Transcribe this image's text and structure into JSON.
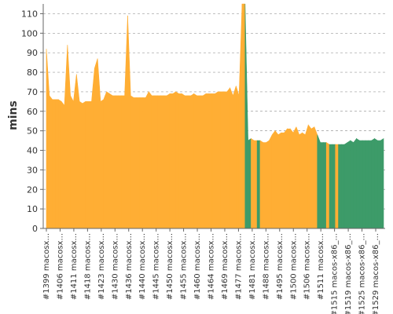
{
  "chart_data": {
    "type": "area",
    "ylabel": "mins",
    "ylim": [
      0,
      115
    ],
    "yticks": [
      0,
      10,
      20,
      30,
      40,
      50,
      60,
      70,
      80,
      90,
      100,
      110
    ],
    "grid": "horizontal dashed",
    "status_colors": {
      "failed": "#FFAE34",
      "passed": "#3D9B69"
    },
    "x_tick_labels": [
      "#1399 macosx...",
      "#1406 macosx...",
      "#1411 macosx...",
      "#1418 macosx...",
      "#1423 macosx...",
      "#1430 macosx...",
      "#1436 macosx...",
      "#1440 macosx...",
      "#1445 macosx...",
      "#1450 macosx...",
      "#1455 macosx...",
      "#1460 macosx...",
      "#1464 macosx...",
      "#1469 macosx...",
      "#1477 macosx...",
      "#1481 macosx...",
      "#1488 macosx...",
      "#1495 macosx...",
      "#1500 macosx...",
      "#1506 macosx...",
      "#1511 macosx...",
      "#1515 macos-x86_...",
      "#1519 macos-x86_...",
      "#1525 macos-x86_...",
      "#1529 macos-x86_..."
    ],
    "points": [
      {
        "build": 1399,
        "mins": 92,
        "status": "failed"
      },
      {
        "build": 1400,
        "mins": 68,
        "status": "failed"
      },
      {
        "build": 1401,
        "mins": 66,
        "status": "failed"
      },
      {
        "build": 1402,
        "mins": 66,
        "status": "failed"
      },
      {
        "build": 1403,
        "mins": 66,
        "status": "failed"
      },
      {
        "build": 1404,
        "mins": 65,
        "status": "failed"
      },
      {
        "build": 1405,
        "mins": 63,
        "status": "failed"
      },
      {
        "build": 1406,
        "mins": 94,
        "status": "failed"
      },
      {
        "build": 1407,
        "mins": 68,
        "status": "failed"
      },
      {
        "build": 1408,
        "mins": 65,
        "status": "failed"
      },
      {
        "build": 1409,
        "mins": 79,
        "status": "failed"
      },
      {
        "build": 1410,
        "mins": 65,
        "status": "failed"
      },
      {
        "build": 1411,
        "mins": 64,
        "status": "failed"
      },
      {
        "build": 1412,
        "mins": 65,
        "status": "failed"
      },
      {
        "build": 1413,
        "mins": 65,
        "status": "failed"
      },
      {
        "build": 1414,
        "mins": 65,
        "status": "failed"
      },
      {
        "build": 1415,
        "mins": 82,
        "status": "failed"
      },
      {
        "build": 1416,
        "mins": 87,
        "status": "failed"
      },
      {
        "build": 1417,
        "mins": 65,
        "status": "failed"
      },
      {
        "build": 1418,
        "mins": 66,
        "status": "failed"
      },
      {
        "build": 1419,
        "mins": 70,
        "status": "failed"
      },
      {
        "build": 1420,
        "mins": 69,
        "status": "failed"
      },
      {
        "build": 1421,
        "mins": 68,
        "status": "failed"
      },
      {
        "build": 1422,
        "mins": 68,
        "status": "failed"
      },
      {
        "build": 1423,
        "mins": 68,
        "status": "failed"
      },
      {
        "build": 1424,
        "mins": 68,
        "status": "failed"
      },
      {
        "build": 1425,
        "mins": 68,
        "status": "failed"
      },
      {
        "build": 1426,
        "mins": 109,
        "status": "failed"
      },
      {
        "build": 1427,
        "mins": 68,
        "status": "failed"
      },
      {
        "build": 1428,
        "mins": 67,
        "status": "failed"
      },
      {
        "build": 1429,
        "mins": 67,
        "status": "failed"
      },
      {
        "build": 1430,
        "mins": 67,
        "status": "failed"
      },
      {
        "build": 1431,
        "mins": 67,
        "status": "failed"
      },
      {
        "build": 1432,
        "mins": 67,
        "status": "failed"
      },
      {
        "build": 1433,
        "mins": 70,
        "status": "failed"
      },
      {
        "build": 1434,
        "mins": 68,
        "status": "failed"
      },
      {
        "build": 1435,
        "mins": 68,
        "status": "failed"
      },
      {
        "build": 1436,
        "mins": 68,
        "status": "failed"
      },
      {
        "build": 1437,
        "mins": 68,
        "status": "failed"
      },
      {
        "build": 1438,
        "mins": 68,
        "status": "failed"
      },
      {
        "build": 1439,
        "mins": 68,
        "status": "failed"
      },
      {
        "build": 1440,
        "mins": 69,
        "status": "failed"
      },
      {
        "build": 1441,
        "mins": 69,
        "status": "failed"
      },
      {
        "build": 1442,
        "mins": 70,
        "status": "failed"
      },
      {
        "build": 1443,
        "mins": 69,
        "status": "failed"
      },
      {
        "build": 1444,
        "mins": 69,
        "status": "failed"
      },
      {
        "build": 1445,
        "mins": 68,
        "status": "failed"
      },
      {
        "build": 1446,
        "mins": 68,
        "status": "failed"
      },
      {
        "build": 1447,
        "mins": 68,
        "status": "failed"
      },
      {
        "build": 1448,
        "mins": 69,
        "status": "failed"
      },
      {
        "build": 1449,
        "mins": 68,
        "status": "failed"
      },
      {
        "build": 1450,
        "mins": 68,
        "status": "failed"
      },
      {
        "build": 1451,
        "mins": 68,
        "status": "failed"
      },
      {
        "build": 1452,
        "mins": 69,
        "status": "failed"
      },
      {
        "build": 1453,
        "mins": 69,
        "status": "failed"
      },
      {
        "build": 1454,
        "mins": 69,
        "status": "failed"
      },
      {
        "build": 1455,
        "mins": 69,
        "status": "failed"
      },
      {
        "build": 1456,
        "mins": 70,
        "status": "failed"
      },
      {
        "build": 1457,
        "mins": 70,
        "status": "failed"
      },
      {
        "build": 1458,
        "mins": 70,
        "status": "failed"
      },
      {
        "build": 1459,
        "mins": 70,
        "status": "failed"
      },
      {
        "build": 1460,
        "mins": 72,
        "status": "failed"
      },
      {
        "build": 1461,
        "mins": 68,
        "status": "failed"
      },
      {
        "build": 1462,
        "mins": 73,
        "status": "failed"
      },
      {
        "build": 1463,
        "mins": 68,
        "status": "failed"
      },
      {
        "build": 1464,
        "mins": 115,
        "status": "failed"
      },
      {
        "build": 1465,
        "mins": 115,
        "status": "failed"
      },
      {
        "build": 1466,
        "mins": 45,
        "status": "passed"
      },
      {
        "build": 1467,
        "mins": 46,
        "status": "passed"
      },
      {
        "build": 1468,
        "mins": 45,
        "status": "failed"
      },
      {
        "build": 1469,
        "mins": 45,
        "status": "failed"
      },
      {
        "build": 1470,
        "mins": 45,
        "status": "passed"
      },
      {
        "build": 1471,
        "mins": 44,
        "status": "failed"
      },
      {
        "build": 1472,
        "mins": 44,
        "status": "failed"
      },
      {
        "build": 1473,
        "mins": 45,
        "status": "failed"
      },
      {
        "build": 1474,
        "mins": 48,
        "status": "failed"
      },
      {
        "build": 1475,
        "mins": 50,
        "status": "failed"
      },
      {
        "build": 1476,
        "mins": 48,
        "status": "failed"
      },
      {
        "build": 1477,
        "mins": 49,
        "status": "failed"
      },
      {
        "build": 1478,
        "mins": 49,
        "status": "failed"
      },
      {
        "build": 1479,
        "mins": 51,
        "status": "failed"
      },
      {
        "build": 1480,
        "mins": 51,
        "status": "failed"
      },
      {
        "build": 1481,
        "mins": 49,
        "status": "failed"
      },
      {
        "build": 1482,
        "mins": 52,
        "status": "failed"
      },
      {
        "build": 1483,
        "mins": 48,
        "status": "failed"
      },
      {
        "build": 1484,
        "mins": 49,
        "status": "failed"
      },
      {
        "build": 1485,
        "mins": 48,
        "status": "failed"
      },
      {
        "build": 1486,
        "mins": 53,
        "status": "failed"
      },
      {
        "build": 1487,
        "mins": 51,
        "status": "failed"
      },
      {
        "build": 1488,
        "mins": 52,
        "status": "failed"
      },
      {
        "build": 1489,
        "mins": 48,
        "status": "failed"
      },
      {
        "build": 1490,
        "mins": 44,
        "status": "passed"
      },
      {
        "build": 1491,
        "mins": 44,
        "status": "passed"
      },
      {
        "build": 1492,
        "mins": 44,
        "status": "passed"
      },
      {
        "build": 1493,
        "mins": 43,
        "status": "failed"
      },
      {
        "build": 1494,
        "mins": 43,
        "status": "passed"
      },
      {
        "build": 1495,
        "mins": 43,
        "status": "passed"
      },
      {
        "build": 1496,
        "mins": 43,
        "status": "failed"
      },
      {
        "build": 1497,
        "mins": 43,
        "status": "passed"
      },
      {
        "build": 1498,
        "mins": 43,
        "status": "passed"
      },
      {
        "build": 1499,
        "mins": 44,
        "status": "passed"
      },
      {
        "build": 1500,
        "mins": 45,
        "status": "passed"
      },
      {
        "build": 1501,
        "mins": 44,
        "status": "passed"
      },
      {
        "build": 1502,
        "mins": 46,
        "status": "passed"
      },
      {
        "build": 1503,
        "mins": 45,
        "status": "passed"
      },
      {
        "build": 1504,
        "mins": 45,
        "status": "passed"
      },
      {
        "build": 1505,
        "mins": 45,
        "status": "passed"
      },
      {
        "build": 1506,
        "mins": 45,
        "status": "passed"
      },
      {
        "build": 1507,
        "mins": 45,
        "status": "passed"
      },
      {
        "build": 1508,
        "mins": 46,
        "status": "passed"
      },
      {
        "build": 1509,
        "mins": 45,
        "status": "passed"
      },
      {
        "build": 1510,
        "mins": 45,
        "status": "passed"
      },
      {
        "build": 1511,
        "mins": 46,
        "status": "passed"
      }
    ]
  }
}
